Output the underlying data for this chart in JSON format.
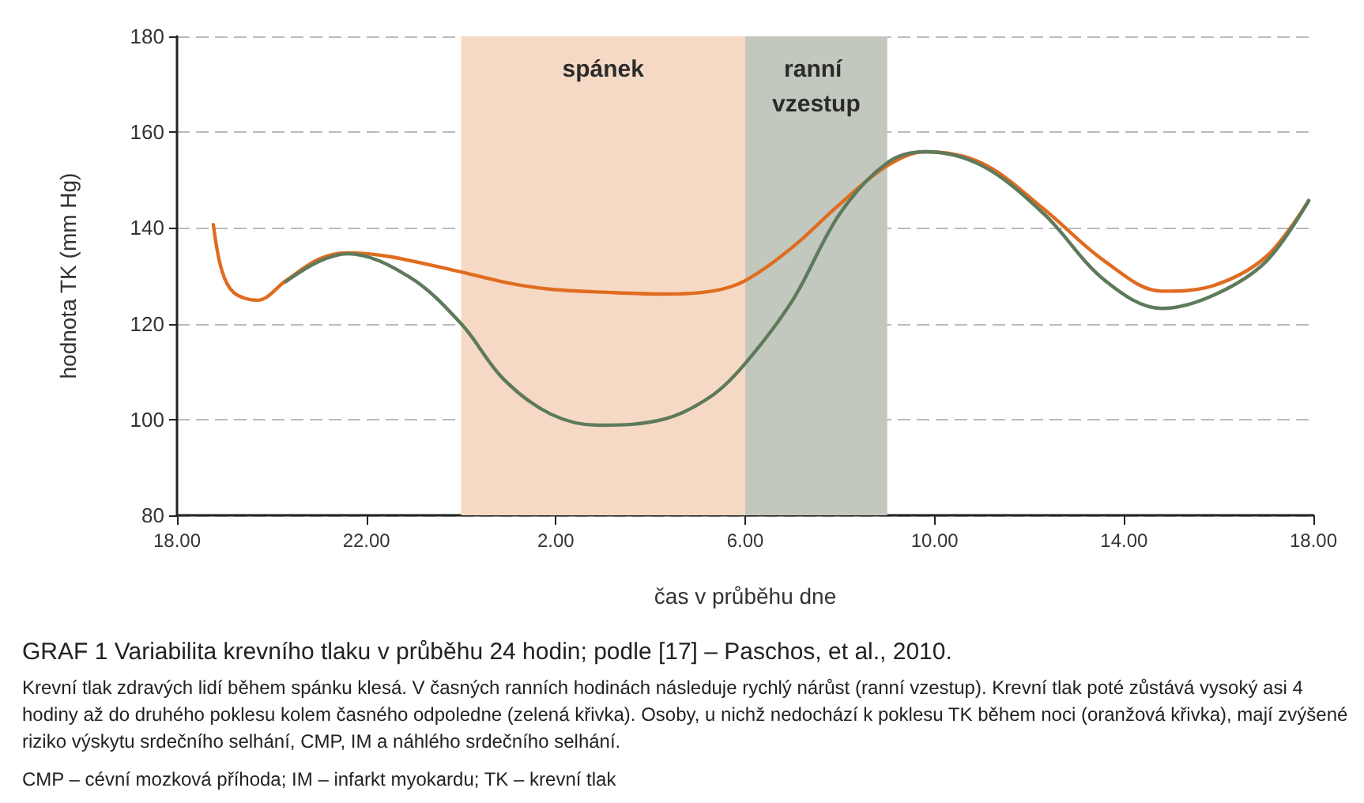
{
  "chart_data": {
    "type": "line",
    "title": "GRAF 1 Variabilita krevního tlaku v průběhu 24 hodin; podle [17] – Paschos, et al., 2010.",
    "xlabel": "čas v průběhu dne",
    "ylabel": "hodnota TK (mm Hg)",
    "annotations": [
      "Krevní tlak zdravých lidí během spánku klesá. V časných ranních hodinách následuje rychlý nárůst (ranní vzestup). Krevní tlak poté zůstává vysoký asi 4 hodiny až do druhého poklesu kolem časného odpoledne (zelená křivka). Osoby, u nichž nedochází k poklesu TK během noci (oranžová křivka), mají zvýšené riziko výskytu srdečního selhání, CMP, IM a náhlého srdečního selhání.",
      "CMP – cévní mozková příhoda; IM – infarkt myokardu; TK – krevní tlak"
    ],
    "xlim": [
      "2000-01-01T18:00",
      "2000-01-02T18:00"
    ],
    "xticks": [
      {
        "value": "2000-01-01T18:00",
        "label": "18.00"
      },
      {
        "value": "2000-01-01T22:00",
        "label": "22.00"
      },
      {
        "value": "2000-01-02T02:00",
        "label": "2.00"
      },
      {
        "value": "2000-01-02T06:00",
        "label": "6.00"
      },
      {
        "value": "2000-01-02T10:00",
        "label": "10.00"
      },
      {
        "value": "2000-01-02T14:00",
        "label": "14.00"
      },
      {
        "value": "2000-01-02T18:00",
        "label": "18.00"
      }
    ],
    "ylim": [
      80,
      180
    ],
    "yticks": [
      80,
      100,
      120,
      140,
      160,
      180
    ],
    "grid": "y",
    "marker": "none",
    "line_style": "solid",
    "bands": [
      {
        "axis": "x",
        "from": "2000-01-02T00:00",
        "to": "2000-01-02T06:00",
        "label": "spánek",
        "color": "#f6d9c4"
      },
      {
        "axis": "x",
        "from": "2000-01-02T06:00",
        "to": "2000-01-02T09:00",
        "label": "ranní vzestup",
        "color": "#c2c8bd"
      }
    ],
    "series": [
      {
        "color": "#e06c1f",
        "x": [
          "2000-01-01T18:46",
          "2000-01-01T18:57",
          "2000-01-01T19:12",
          "2000-01-01T19:42",
          "2000-01-01T20:18",
          "2000-01-01T21:00",
          "2000-01-01T21:36",
          "2000-01-01T22:30",
          "2000-01-02T00:00",
          "2000-01-02T01:00",
          "2000-01-02T01:54",
          "2000-01-02T03:00",
          "2000-01-02T04:18",
          "2000-01-02T05:18",
          "2000-01-02T06:00",
          "2000-01-02T07:00",
          "2000-01-02T08:00",
          "2000-01-02T09:00",
          "2000-01-02T09:48",
          "2000-01-02T11:00",
          "2000-01-02T12:18",
          "2000-01-02T13:36",
          "2000-01-02T14:48",
          "2000-01-02T15:54",
          "2000-01-02T17:00",
          "2000-01-02T17:54"
        ],
        "values": [
          140.7,
          131,
          126.5,
          124.9,
          129,
          133.5,
          134.8,
          134,
          130.8,
          128.5,
          127.2,
          126.6,
          126.2,
          126.8,
          129,
          136,
          145,
          153,
          155.9,
          153.5,
          144,
          133,
          126.8,
          128,
          134,
          145.7
        ]
      },
      {
        "color": "#5e7a5c",
        "x": [
          "2000-01-01T20:18",
          "2000-01-01T21:00",
          "2000-01-01T21:36",
          "2000-01-01T22:54",
          "2000-01-02T00:00",
          "2000-01-02T00:54",
          "2000-01-02T01:54",
          "2000-01-02T02:54",
          "2000-01-02T04:18",
          "2000-01-02T05:18",
          "2000-01-02T06:00",
          "2000-01-02T07:00",
          "2000-01-02T08:00",
          "2000-01-02T09:00",
          "2000-01-02T09:48",
          "2000-01-02T11:00",
          "2000-01-02T12:18",
          "2000-01-02T13:36",
          "2000-01-02T14:48",
          "2000-01-02T15:54",
          "2000-01-02T17:00",
          "2000-01-02T17:54"
        ],
        "values": [
          128.8,
          133,
          134.6,
          129.8,
          120,
          108.4,
          101.1,
          98.8,
          100.1,
          105,
          111.7,
          124.9,
          143,
          153.6,
          155.9,
          153,
          143,
          129,
          123.2,
          126,
          133,
          145.7
        ]
      }
    ]
  }
}
